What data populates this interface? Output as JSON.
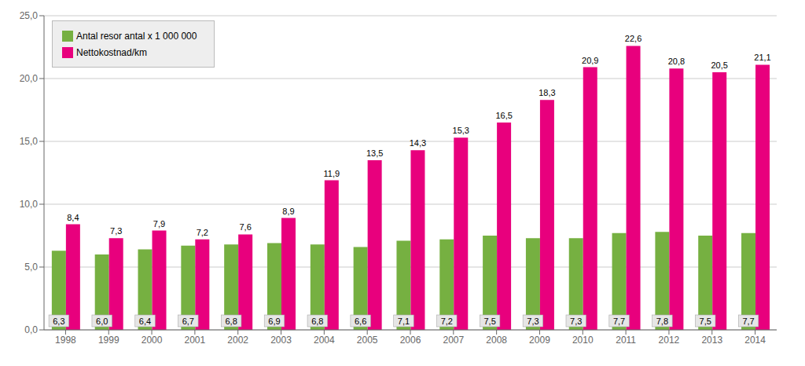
{
  "chart_data": {
    "type": "bar",
    "categories": [
      "1998",
      "1999",
      "2000",
      "2001",
      "2002",
      "2003",
      "2004",
      "2005",
      "2006",
      "2007",
      "2008",
      "2009",
      "2010",
      "2011",
      "2012",
      "2013",
      "2014"
    ],
    "series": [
      {
        "name": "Antal resor antal x 1 000 000",
        "color": "#76b041",
        "values": [
          6.3,
          6.0,
          6.4,
          6.7,
          6.8,
          6.9,
          6.8,
          6.6,
          7.1,
          7.2,
          7.5,
          7.3,
          7.3,
          7.7,
          7.8,
          7.5,
          7.7
        ],
        "value_labels": [
          "6,3",
          "6,0",
          "6,4",
          "6,7",
          "6,8",
          "6,9",
          "6,8",
          "6,6",
          "7,1",
          "7,2",
          "7,5",
          "7,3",
          "7,3",
          "7,7",
          "7,8",
          "7,5",
          "7,7"
        ]
      },
      {
        "name": "Nettokostnad/km",
        "color": "#e8007d",
        "values": [
          8.4,
          7.3,
          7.9,
          7.2,
          7.6,
          8.9,
          11.9,
          13.5,
          14.3,
          15.3,
          16.5,
          18.3,
          20.9,
          22.6,
          20.8,
          20.5,
          21.1
        ],
        "value_labels": [
          "8,4",
          "7,3",
          "7,9",
          "7,2",
          "7,6",
          "8,9",
          "11,9",
          "13,5",
          "14,3",
          "15,3",
          "16,5",
          "18,3",
          "20,9",
          "22,6",
          "20,8",
          "20,5",
          "21,1"
        ]
      }
    ],
    "ylim": [
      0,
      25
    ],
    "yticks": [
      {
        "value": 0,
        "label": "0,0"
      },
      {
        "value": 5,
        "label": "5,0"
      },
      {
        "value": 10,
        "label": "10,0"
      },
      {
        "value": 15,
        "label": "15,0"
      },
      {
        "value": 20,
        "label": "20,0"
      },
      {
        "value": 25,
        "label": "25,0"
      }
    ],
    "grid": true,
    "legend": "upper left",
    "data_labels": true
  }
}
